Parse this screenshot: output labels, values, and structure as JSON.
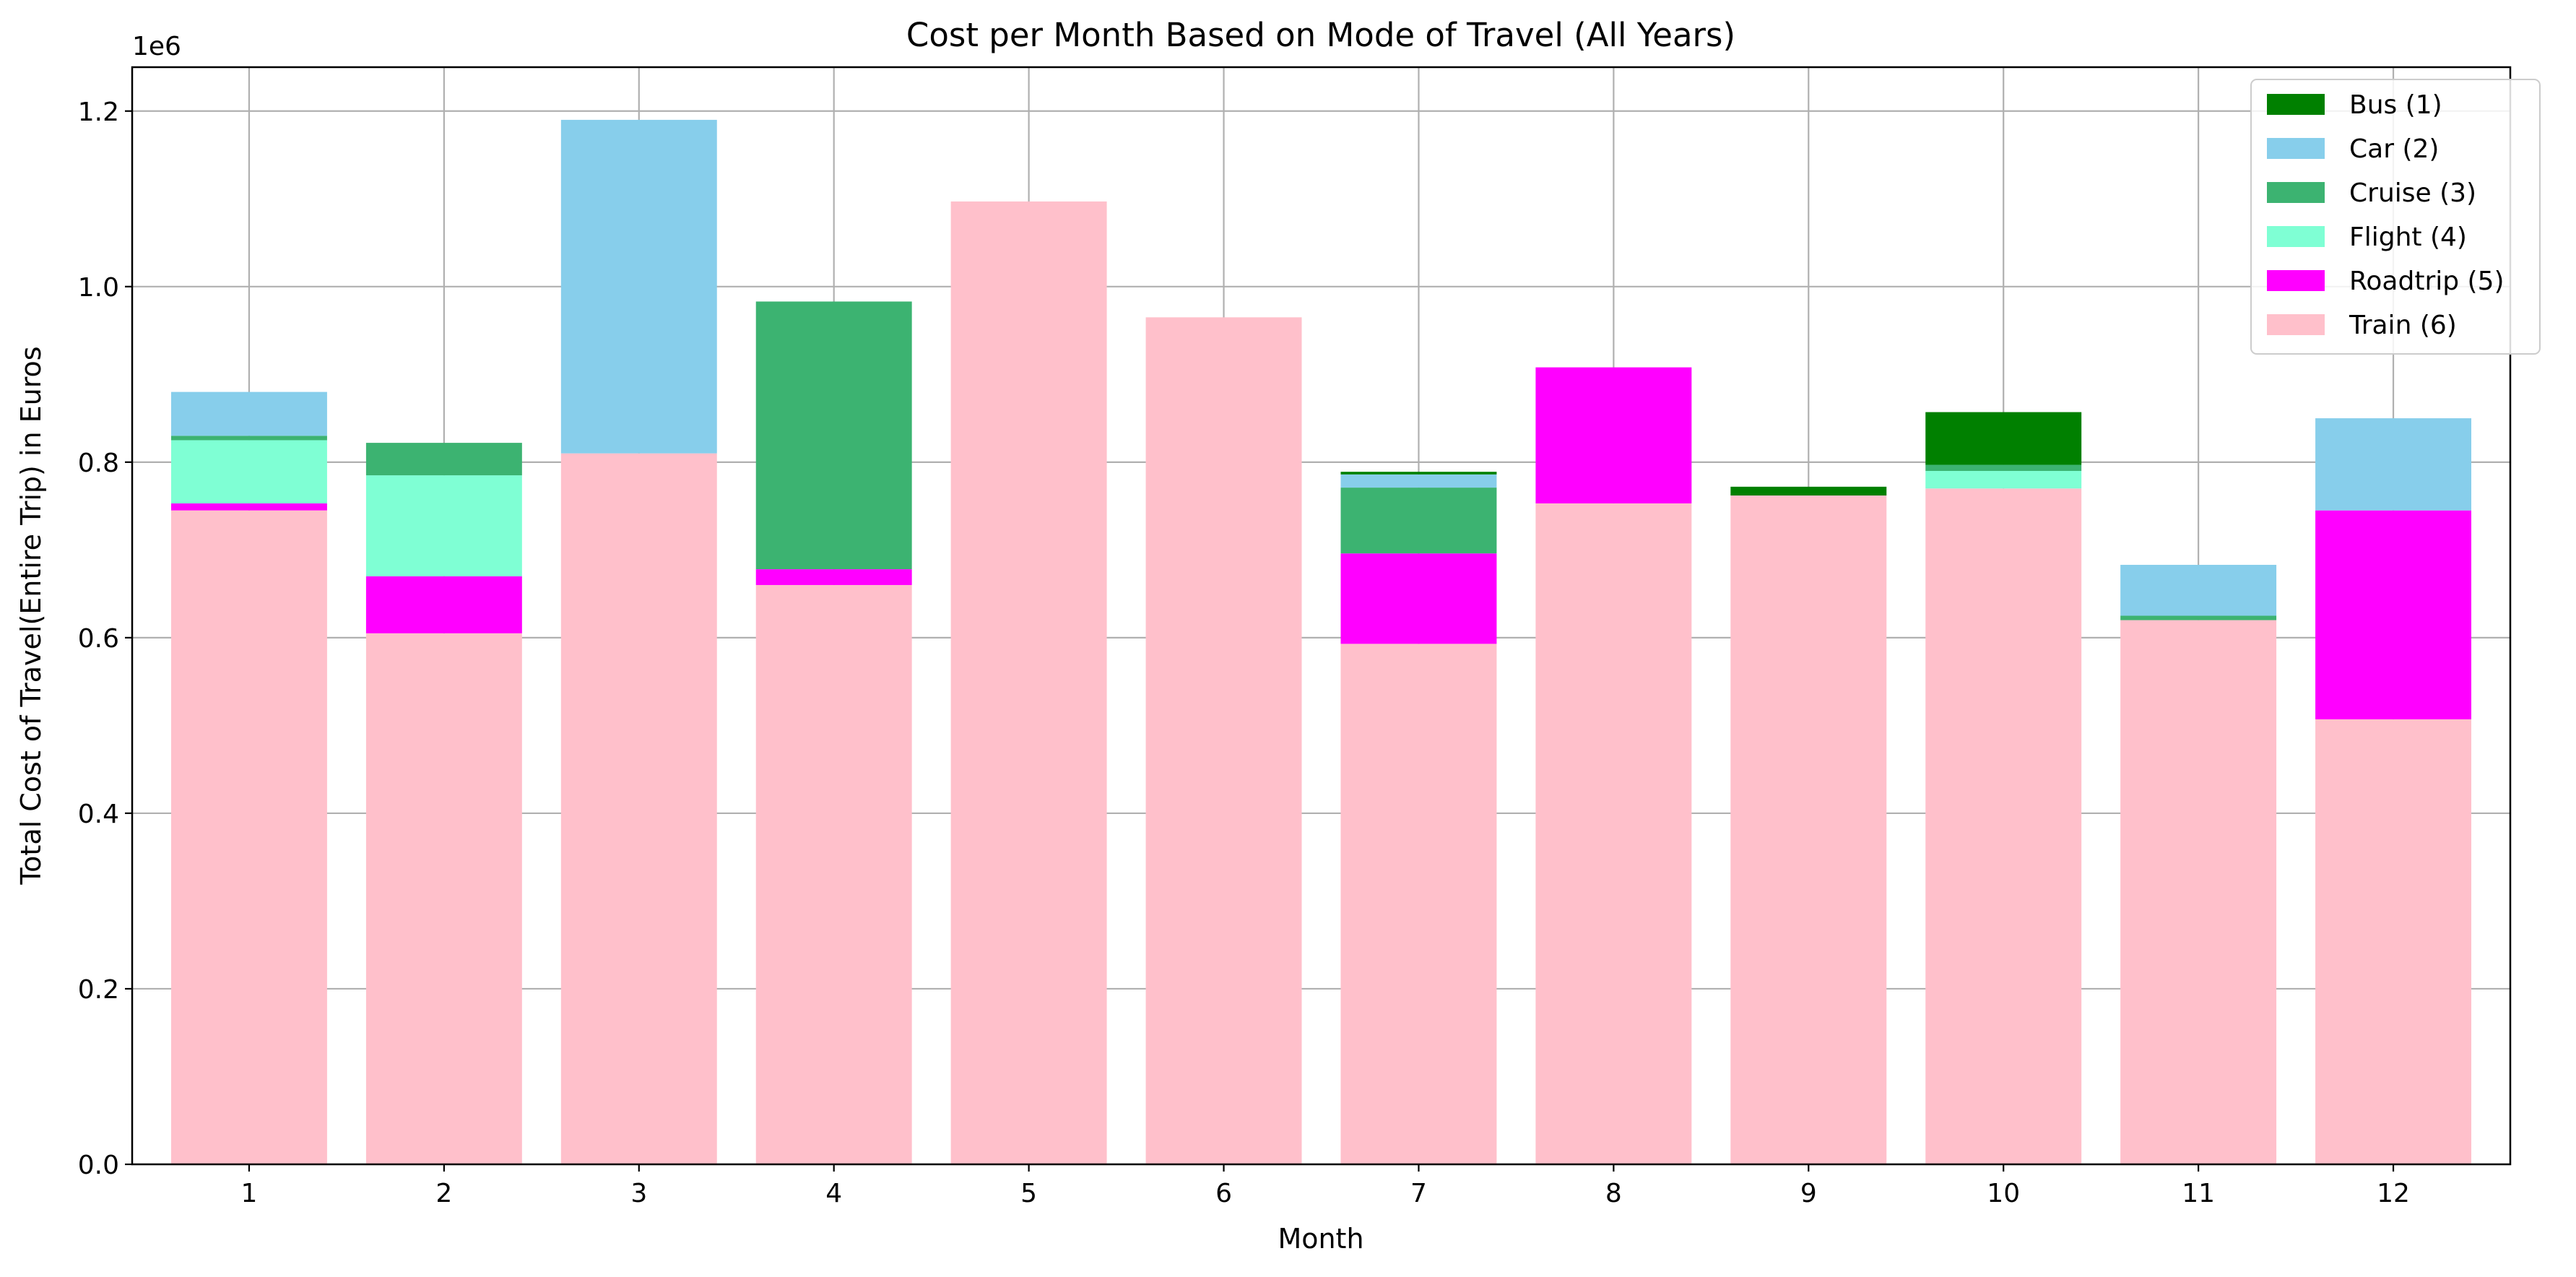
{
  "chart_data": {
    "type": "bar",
    "stacked": true,
    "title": "Cost per Month Based on Mode of Travel (All Years)",
    "xlabel": "Month",
    "ylabel": "Total Cost of Travel(Entire Trip) in Euros",
    "y_offset_text": "1e6",
    "ylim": [
      0,
      1250000
    ],
    "y_ticks": [
      0,
      200000,
      400000,
      600000,
      800000,
      1000000,
      1200000
    ],
    "y_tick_labels": [
      "0.0",
      "0.2",
      "0.4",
      "0.6",
      "0.8",
      "1.0",
      "1.2"
    ],
    "categories": [
      "1",
      "2",
      "3",
      "4",
      "5",
      "6",
      "7",
      "8",
      "9",
      "10",
      "11",
      "12"
    ],
    "grid": true,
    "legend_position": "top-right",
    "stack_order": [
      "Train (6)",
      "Roadtrip (5)",
      "Flight (4)",
      "Cruise (3)",
      "Car (2)",
      "Bus (1)"
    ],
    "series": [
      {
        "name": "Bus (1)",
        "color": "#008000",
        "values": [
          0,
          0,
          0,
          0,
          0,
          0,
          3000,
          0,
          10000,
          60000,
          0,
          0
        ]
      },
      {
        "name": "Car (2)",
        "color": "#87CEEB",
        "values": [
          50000,
          0,
          380000,
          0,
          0,
          0,
          15000,
          0,
          0,
          0,
          58000,
          105000
        ]
      },
      {
        "name": "Cruise (3)",
        "color": "#3CB371",
        "values": [
          5000,
          37000,
          0,
          305000,
          0,
          0,
          75000,
          0,
          0,
          7000,
          5000,
          0
        ]
      },
      {
        "name": "Flight (4)",
        "color": "#7FFFD4",
        "values": [
          72000,
          115000,
          0,
          0,
          0,
          0,
          0,
          0,
          0,
          20000,
          0,
          0
        ]
      },
      {
        "name": "Roadtrip (5)",
        "color": "#FF00FF",
        "values": [
          8000,
          65000,
          0,
          18000,
          0,
          0,
          103000,
          155000,
          0,
          0,
          0,
          238000
        ]
      },
      {
        "name": "Train (6)",
        "color": "#FFC0CB",
        "values": [
          745000,
          605000,
          810000,
          660000,
          1097000,
          965000,
          593000,
          753000,
          762000,
          770000,
          620000,
          507000
        ]
      }
    ]
  }
}
